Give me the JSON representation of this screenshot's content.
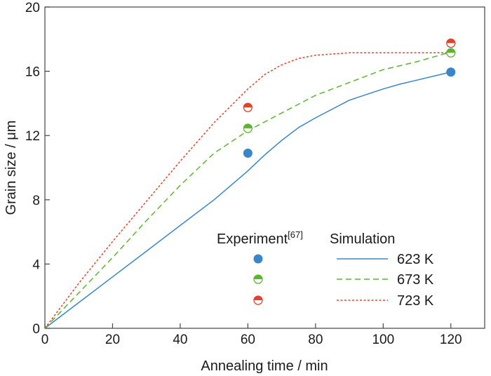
{
  "chart_data": {
    "type": "line",
    "xlabel": "Annealing time / min",
    "ylabel": "Grain size / μm",
    "xlim": [
      0,
      130
    ],
    "ylim": [
      0,
      20
    ],
    "x_ticks": [
      0,
      20,
      40,
      60,
      80,
      100,
      120
    ],
    "y_ticks": [
      0,
      4,
      8,
      12,
      16,
      20
    ],
    "grid": false,
    "legend": {
      "placement": "bottom-right",
      "experiment_title": "Experiment",
      "experiment_ref": "[67]",
      "simulation_title": "Simulation"
    },
    "series": [
      {
        "name": "623 K",
        "style": "solid",
        "color": "#3a86c8",
        "x": [
          0,
          10,
          20,
          30,
          40,
          50,
          60,
          65,
          70,
          75,
          80,
          90,
          100,
          105,
          110,
          120
        ],
        "y": [
          0,
          1.6,
          3.2,
          4.8,
          6.4,
          8.0,
          9.8,
          10.8,
          11.7,
          12.5,
          13.1,
          14.2,
          14.9,
          15.2,
          15.45,
          15.95
        ]
      },
      {
        "name": "673 K",
        "style": "dashed",
        "color": "#5cb531",
        "x": [
          0,
          10,
          20,
          30,
          40,
          50,
          60,
          70,
          80,
          90,
          100,
          110,
          120
        ],
        "y": [
          0,
          2.2,
          4.4,
          6.7,
          8.9,
          10.9,
          12.3,
          13.4,
          14.5,
          15.3,
          16.1,
          16.6,
          17.2
        ]
      },
      {
        "name": "723 K",
        "style": "dotted",
        "color": "#e0442c",
        "x": [
          0,
          10,
          20,
          30,
          40,
          50,
          60,
          65,
          70,
          75,
          80,
          90,
          100,
          110,
          120
        ],
        "y": [
          0,
          2.8,
          5.4,
          7.9,
          10.4,
          12.8,
          14.9,
          15.8,
          16.4,
          16.8,
          17.0,
          17.15,
          17.15,
          17.15,
          17.15
        ]
      }
    ],
    "experiments": [
      {
        "series": "623 K",
        "marker": "filled",
        "color": "#3a86c8",
        "x": [
          60,
          120
        ],
        "y": [
          10.9,
          15.95
        ]
      },
      {
        "series": "673 K",
        "marker": "half",
        "color": "#5cb531",
        "x": [
          60,
          120
        ],
        "y": [
          12.45,
          17.15
        ]
      },
      {
        "series": "723 K",
        "marker": "half",
        "color": "#e0442c",
        "x": [
          60,
          120
        ],
        "y": [
          13.75,
          17.75
        ]
      }
    ]
  }
}
